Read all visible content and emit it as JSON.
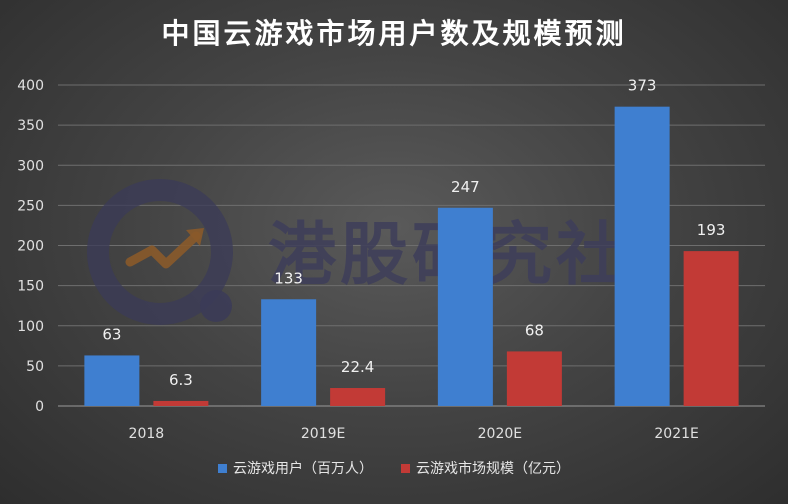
{
  "chart_data": {
    "type": "bar",
    "title": "中国云游戏市场用户数及规模预测",
    "categories": [
      "2018",
      "2019E",
      "2020E",
      "2021E"
    ],
    "series": [
      {
        "name": "云游戏用户（百万人）",
        "values": [
          63,
          133,
          247,
          373
        ],
        "labels": [
          "63",
          "133",
          "247",
          "373"
        ],
        "color": "#3f7fd0"
      },
      {
        "name": "云游戏市场规模（亿元）",
        "values": [
          6.3,
          22.4,
          68,
          193
        ],
        "labels": [
          "6.3",
          "22.4",
          "68",
          "193"
        ],
        "color": "#c23a36"
      }
    ],
    "ylim": [
      0,
      400
    ],
    "yticks": [
      "0",
      "50",
      "100",
      "150",
      "200",
      "250",
      "300",
      "350",
      "400"
    ],
    "grid": true,
    "legend_position": "bottom"
  },
  "watermark": {
    "text": "港股研究社"
  },
  "colors": {
    "grid": "#6e6e6e",
    "axis_text": "#e0e0e0"
  }
}
